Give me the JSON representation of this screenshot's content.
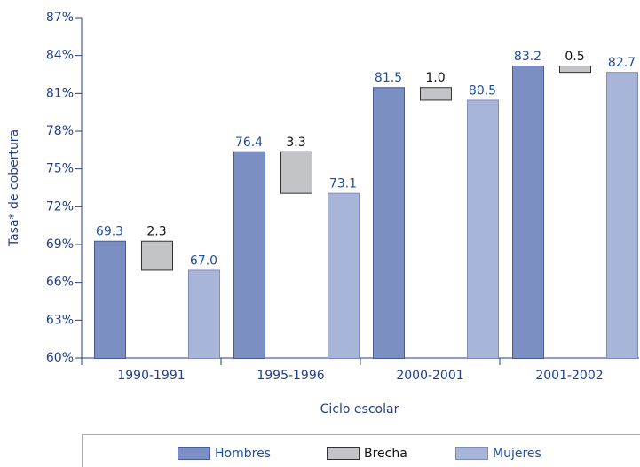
{
  "chart_data": {
    "type": "bar",
    "y_label": "Tasa* de cobertura",
    "x_label": "Ciclo escolar",
    "categories": [
      "1990-1991",
      "1995-1996",
      "2000-2001",
      "2001-2002"
    ],
    "series": [
      {
        "name": "Hombres",
        "color": "#7b8fc2",
        "values": [
          69.3,
          76.4,
          81.5,
          83.2
        ],
        "value_labels": [
          "69.3",
          "76.4",
          "81.5",
          "83.2"
        ]
      },
      {
        "name": "Brecha",
        "color": "#c3c4c8",
        "values": [
          2.3,
          3.3,
          1.0,
          0.5
        ],
        "value_labels": [
          "2.3",
          "3.3",
          "1.0",
          "0.5"
        ]
      },
      {
        "name": "Mujeres",
        "color": "#a8b5d8",
        "values": [
          67.0,
          73.1,
          80.5,
          82.7
        ],
        "value_labels": [
          "67.0",
          "73.1",
          "80.5",
          "82.7"
        ]
      }
    ],
    "ylim": [
      60,
      87
    ],
    "yticks": [
      {
        "value": 60,
        "label": "60%"
      },
      {
        "value": 63,
        "label": "63%"
      },
      {
        "value": 66,
        "label": "66%"
      },
      {
        "value": 69,
        "label": "69%"
      },
      {
        "value": 72,
        "label": "72%"
      },
      {
        "value": 75,
        "label": "75%"
      },
      {
        "value": 78,
        "label": "78%"
      },
      {
        "value": 81,
        "label": "81%"
      },
      {
        "value": 84,
        "label": "84%"
      },
      {
        "value": 87,
        "label": "87%"
      }
    ],
    "legend": "bottom"
  }
}
